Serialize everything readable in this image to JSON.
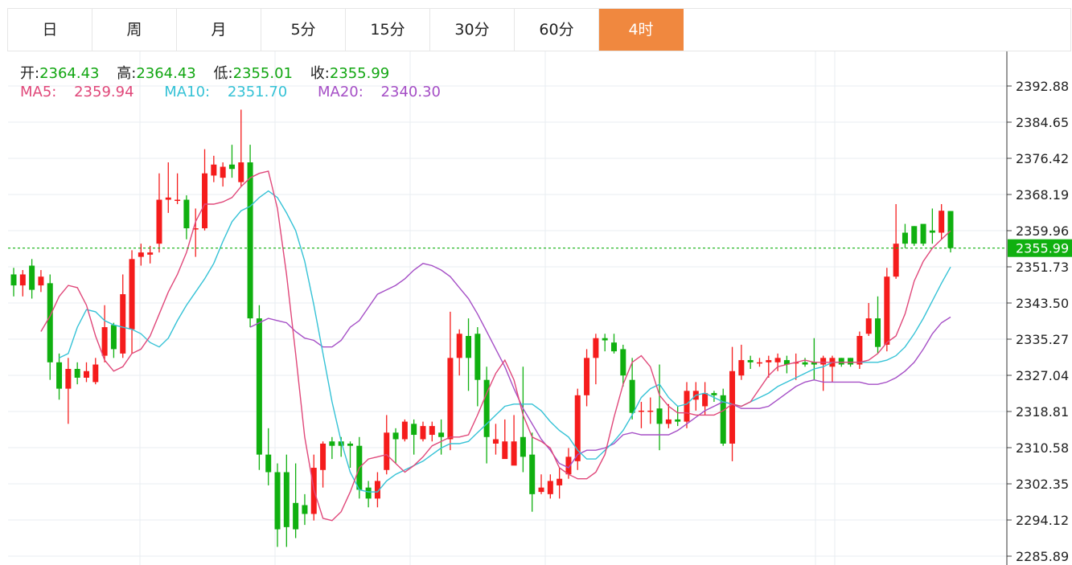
{
  "tabs": [
    {
      "label": "日"
    },
    {
      "label": "周"
    },
    {
      "label": "月"
    },
    {
      "label": "5分"
    },
    {
      "label": "15分"
    },
    {
      "label": "30分"
    },
    {
      "label": "60分"
    },
    {
      "label": "4时",
      "active": true
    }
  ],
  "ohlc": {
    "open_label": "开:",
    "open": "2364.43",
    "high_label": "高:",
    "high": "2364.43",
    "low_label": "低:",
    "low": "2355.01",
    "close_label": "收:",
    "close": "2355.99"
  },
  "ma": {
    "ma5_label": "MA5:",
    "ma5": "2359.94",
    "ma10_label": "MA10:",
    "ma10": "2351.70",
    "ma20_label": "MA20:",
    "ma20": "2340.30"
  },
  "colors": {
    "up": "#f51c1c",
    "down": "#10b010",
    "ma5": "#e0487a",
    "ma10": "#35c2d6",
    "ma20": "#a54fc6",
    "last_price": "#10b010",
    "active_tab": "#f0883f"
  },
  "chart_data": {
    "type": "candlestick",
    "ylim": [
      2283.5,
      2397.0
    ],
    "y_ticks": [
      "2392.88",
      "2384.65",
      "2376.42",
      "2368.19",
      "2359.96",
      "2351.73",
      "2343.50",
      "2335.27",
      "2327.04",
      "2318.81",
      "2310.58",
      "2302.35",
      "2294.12",
      "2285.89"
    ],
    "last_price": "2355.99",
    "candles": [
      [
        2350.0,
        2347.5,
        2351.5,
        2345.0
      ],
      [
        2347.5,
        2350.0,
        2351.0,
        2345.0
      ],
      [
        2352.0,
        2346.5,
        2353.5,
        2344.5
      ],
      [
        2347.5,
        2349.5,
        2351.0,
        2346.0
      ],
      [
        2348.0,
        2330.0,
        2350.0,
        2326.0
      ],
      [
        2330.0,
        2324.0,
        2332.0,
        2321.5
      ],
      [
        2324.0,
        2328.5,
        2331.0,
        2316.0
      ],
      [
        2328.5,
        2326.5,
        2330.0,
        2325.0
      ],
      [
        2326.5,
        2328.0,
        2330.0,
        2325.5
      ],
      [
        2325.5,
        2329.5,
        2331.0,
        2325.0
      ],
      [
        2331.5,
        2338.0,
        2343.0,
        2330.0
      ],
      [
        2338.5,
        2333.0,
        2339.0,
        2331.0
      ],
      [
        2332.0,
        2345.5,
        2350.0,
        2331.0
      ],
      [
        2337.5,
        2353.5,
        2355.5,
        2332.0
      ],
      [
        2354.0,
        2355.0,
        2357.0,
        2352.0
      ],
      [
        2354.5,
        2355.0,
        2356.5,
        2352.5
      ],
      [
        2357.0,
        2367.0,
        2373.0,
        2355.0
      ],
      [
        2367.0,
        2367.5,
        2375.5,
        2364.0
      ],
      [
        2367.0,
        2367.0,
        2373.0,
        2366.0
      ],
      [
        2367.0,
        2360.5,
        2368.0,
        2358.0
      ],
      [
        2360.5,
        2360.5,
        2365.0,
        2354.0
      ],
      [
        2360.5,
        2373.0,
        2378.5,
        2360.0
      ],
      [
        2372.5,
        2375.0,
        2377.0,
        2371.0
      ],
      [
        2372.0,
        2374.5,
        2375.5,
        2370.0
      ],
      [
        2375.0,
        2374.0,
        2379.5,
        2372.0
      ],
      [
        2371.0,
        2375.5,
        2387.5,
        2370.0
      ],
      [
        2375.5,
        2340.0,
        2379.5,
        2338.0
      ],
      [
        2340.0,
        2309.0,
        2343.0,
        2305.5
      ],
      [
        2309.0,
        2305.0,
        2315.0,
        2302.0
      ],
      [
        2305.0,
        2292.0,
        2307.0,
        2288.0
      ],
      [
        2305.0,
        2292.5,
        2309.0,
        2288.0
      ],
      [
        2298.0,
        2292.0,
        2307.0,
        2290.0
      ],
      [
        2297.5,
        2295.5,
        2300.0,
        2293.0
      ],
      [
        2295.5,
        2306.0,
        2309.0,
        2294.0
      ],
      [
        2305.5,
        2311.5,
        2312.0,
        2301.5
      ],
      [
        2312.0,
        2311.0,
        2313.0,
        2308.0
      ],
      [
        2312.0,
        2311.0,
        2313.0,
        2308.5
      ],
      [
        2311.5,
        2311.0,
        2312.0,
        2306.0
      ],
      [
        2311.0,
        2301.0,
        2313.0,
        2299.0
      ],
      [
        2301.5,
        2299.0,
        2303.0,
        2297.0
      ],
      [
        2299.0,
        2303.0,
        2305.0,
        2297.0
      ],
      [
        2305.5,
        2314.0,
        2318.0,
        2304.5
      ],
      [
        2314.0,
        2312.5,
        2315.0,
        2307.0
      ],
      [
        2312.5,
        2316.5,
        2317.0,
        2312.0
      ],
      [
        2316.0,
        2313.5,
        2317.0,
        2309.0
      ],
      [
        2312.5,
        2315.5,
        2316.5,
        2312.0
      ],
      [
        2313.5,
        2315.5,
        2316.5,
        2312.0
      ],
      [
        2314.0,
        2313.0,
        2317.0,
        2309.0
      ],
      [
        2312.5,
        2331.0,
        2341.5,
        2310.0
      ],
      [
        2331.0,
        2336.5,
        2337.5,
        2327.0
      ],
      [
        2336.0,
        2331.0,
        2340.0,
        2323.5
      ],
      [
        2336.5,
        2326.0,
        2338.0,
        2320.0
      ],
      [
        2326.0,
        2313.0,
        2329.0,
        2307.0
      ],
      [
        2311.5,
        2312.5,
        2316.0,
        2309.0
      ],
      [
        2308.0,
        2312.0,
        2317.0,
        2310.5
      ],
      [
        2306.5,
        2312.0,
        2318.0,
        2309.0
      ],
      [
        2313.0,
        2308.5,
        2329.0,
        2305.0
      ],
      [
        2309.0,
        2300.0,
        2314.0,
        2296.0
      ],
      [
        2300.5,
        2301.5,
        2304.5,
        2300.0
      ],
      [
        2300.0,
        2303.0,
        2304.5,
        2299.0
      ],
      [
        2302.0,
        2303.5,
        2306.0,
        2299.0
      ],
      [
        2304.5,
        2308.5,
        2310.5,
        2303.5
      ],
      [
        2307.5,
        2322.5,
        2324.0,
        2305.5
      ],
      [
        2322.5,
        2331.0,
        2333.0,
        2320.0
      ],
      [
        2331.0,
        2335.5,
        2336.5,
        2325.0
      ],
      [
        2335.5,
        2335.0,
        2336.5,
        2332.5
      ],
      [
        2334.5,
        2332.5,
        2336.5,
        2332.0
      ],
      [
        2333.0,
        2327.0,
        2334.0,
        2324.5
      ],
      [
        2326.0,
        2318.5,
        2331.0,
        2317.0
      ],
      [
        2319.0,
        2319.0,
        2321.0,
        2315.0
      ],
      [
        2319.0,
        2319.0,
        2322.0,
        2316.0
      ],
      [
        2319.5,
        2316.0,
        2329.5,
        2310.0
      ],
      [
        2316.0,
        2317.0,
        2320.5,
        2315.0
      ],
      [
        2317.0,
        2316.5,
        2320.0,
        2315.5
      ],
      [
        2316.5,
        2323.5,
        2325.5,
        2315.0
      ],
      [
        2321.5,
        2323.5,
        2325.5,
        2319.0
      ],
      [
        2320.0,
        2323.0,
        2325.5,
        2318.0
      ],
      [
        2323.0,
        2322.5,
        2323.5,
        2321.0
      ],
      [
        2322.5,
        2311.5,
        2324.0,
        2311.0
      ],
      [
        2311.5,
        2328.0,
        2333.5,
        2307.5
      ],
      [
        2327.0,
        2330.5,
        2334.0,
        2326.0
      ],
      [
        2330.5,
        2330.0,
        2331.5,
        2328.5
      ],
      [
        2330.0,
        2330.0,
        2331.0,
        2329.0
      ],
      [
        2330.0,
        2330.5,
        2331.5,
        2326.5
      ],
      [
        2330.0,
        2331.0,
        2332.0,
        2328.0
      ],
      [
        2330.5,
        2329.5,
        2331.5,
        2327.5
      ],
      [
        2330.0,
        2330.0,
        2332.0,
        2326.0
      ],
      [
        2330.0,
        2329.5,
        2331.0,
        2329.0
      ],
      [
        2330.0,
        2329.5,
        2335.5,
        2326.0
      ],
      [
        2329.5,
        2331.0,
        2331.5,
        2323.5
      ],
      [
        2329.0,
        2331.0,
        2331.5,
        2325.5
      ],
      [
        2331.0,
        2329.5,
        2331.0,
        2329.0
      ],
      [
        2331.0,
        2329.5,
        2331.0,
        2329.0
      ],
      [
        2329.5,
        2336.0,
        2337.0,
        2328.5
      ],
      [
        2336.5,
        2340.0,
        2343.5,
        2336.0
      ],
      [
        2340.0,
        2333.5,
        2345.0,
        2332.0
      ],
      [
        2334.0,
        2349.5,
        2351.5,
        2332.5
      ],
      [
        2349.5,
        2357.0,
        2366.0,
        2349.0
      ],
      [
        2359.5,
        2357.0,
        2361.5,
        2356.0
      ],
      [
        2361.0,
        2357.0,
        2361.0,
        2356.5
      ],
      [
        2361.5,
        2357.0,
        2361.0,
        2356.5
      ],
      [
        2360.0,
        2359.5,
        2365.0,
        2357.0
      ],
      [
        2359.5,
        2364.5,
        2366.0,
        2358.0
      ],
      [
        2364.43,
        2355.99,
        2364.43,
        2355.01
      ]
    ],
    "ma5": [
      2337.0,
      2340.5,
      2345.0,
      2347.5,
      2347.0,
      2343.0,
      2336.0,
      2330.5,
      2328.0,
      2329.0,
      2332.0,
      2333.0,
      2336.0,
      2341.0,
      2346.0,
      2350.0,
      2355.0,
      2362.0,
      2366.0,
      2366.0,
      2366.5,
      2367.5,
      2370.0,
      2372.0,
      2373.0,
      2373.5,
      2365.0,
      2350.0,
      2332.0,
      2313.0,
      2301.0,
      2294.5,
      2294.0,
      2296.0,
      2300.5,
      2306.0,
      2308.0,
      2308.5,
      2309.0,
      2307.0,
      2305.0,
      2306.5,
      2308.5,
      2311.0,
      2312.0,
      2313.0,
      2313.0,
      2313.5,
      2318.0,
      2323.0,
      2327.5,
      2330.5,
      2326.0,
      2318.0,
      2313.0,
      2312.0,
      2310.5,
      2306.0,
      2304.5,
      2303.5,
      2303.5,
      2305.0,
      2309.0,
      2317.5,
      2325.0,
      2330.0,
      2331.5,
      2329.0,
      2322.5,
      2320.0,
      2318.5,
      2318.5,
      2318.0,
      2318.0,
      2318.0,
      2319.0,
      2320.5,
      2320.0,
      2321.0,
      2324.0,
      2327.0,
      2329.0,
      2329.5,
      2330.0,
      2330.5,
      2330.0,
      2330.0,
      2330.0,
      2330.0,
      2330.0,
      2330.0,
      2330.5,
      2332.0,
      2334.5,
      2336.0,
      2341.0,
      2348.5,
      2353.0,
      2356.0,
      2358.0,
      2359.94
    ],
    "ma10": [
      2331.0,
      2332.0,
      2338.0,
      2342.0,
      2341.5,
      2339.5,
      2338.5,
      2338.0,
      2337.5,
      2336.5,
      2334.5,
      2333.5,
      2335.5,
      2339.5,
      2343.0,
      2346.0,
      2349.0,
      2352.5,
      2357.5,
      2362.0,
      2364.5,
      2365.5,
      2367.5,
      2369.0,
      2367.5,
      2364.0,
      2360.0,
      2353.0,
      2343.0,
      2332.0,
      2321.0,
      2312.0,
      2305.0,
      2301.0,
      2300.5,
      2300.5,
      2303.0,
      2304.5,
      2305.5,
      2306.5,
      2307.5,
      2309.0,
      2310.5,
      2311.5,
      2311.5,
      2312.0,
      2314.0,
      2316.0,
      2318.0,
      2320.0,
      2320.5,
      2320.5,
      2320.5,
      2319.0,
      2316.5,
      2314.5,
      2313.0,
      2310.0,
      2308.0,
      2308.0,
      2310.0,
      2312.0,
      2314.5,
      2318.0,
      2322.0,
      2324.0,
      2325.0,
      2322.0,
      2320.0,
      2320.5,
      2322.5,
      2323.0,
      2322.0,
      2321.0,
      2320.5,
      2320.0,
      2321.0,
      2322.0,
      2323.0,
      2324.5,
      2325.5,
      2326.5,
      2327.5,
      2328.5,
      2329.0,
      2330.0,
      2330.0,
      2330.0,
      2330.0,
      2330.0,
      2330.0,
      2330.5,
      2331.5,
      2333.5,
      2336.5,
      2340.0,
      2344.0,
      2348.0,
      2351.7
    ],
    "ma20": [
      2338.0,
      2339.0,
      2340.0,
      2339.5,
      2339.0,
      2337.0,
      2335.5,
      2335.0,
      2333.5,
      2333.5,
      2335.0,
      2338.0,
      2339.5,
      2342.5,
      2345.5,
      2346.5,
      2347.5,
      2349.0,
      2351.0,
      2352.5,
      2352.0,
      2351.0,
      2349.5,
      2347.0,
      2344.5,
      2341.0,
      2337.0,
      2333.0,
      2329.0,
      2324.0,
      2319.5,
      2316.0,
      2312.5,
      2310.0,
      2307.0,
      2306.0,
      2309.0,
      2310.0,
      2310.0,
      2310.5,
      2311.5,
      2313.5,
      2314.0,
      2313.5,
      2313.5,
      2313.5,
      2313.5,
      2314.5,
      2316.0,
      2317.5,
      2319.0,
      2320.0,
      2321.0,
      2320.5,
      2319.5,
      2319.5,
      2319.5,
      2320.0,
      2321.5,
      2323.0,
      2324.5,
      2325.5,
      2326.0,
      2325.5,
      2325.5,
      2325.5,
      2325.5,
      2325.5,
      2325.0,
      2325.0,
      2325.5,
      2326.5,
      2328.0,
      2330.0,
      2333.0,
      2336.5,
      2339.0,
      2340.3
    ]
  }
}
